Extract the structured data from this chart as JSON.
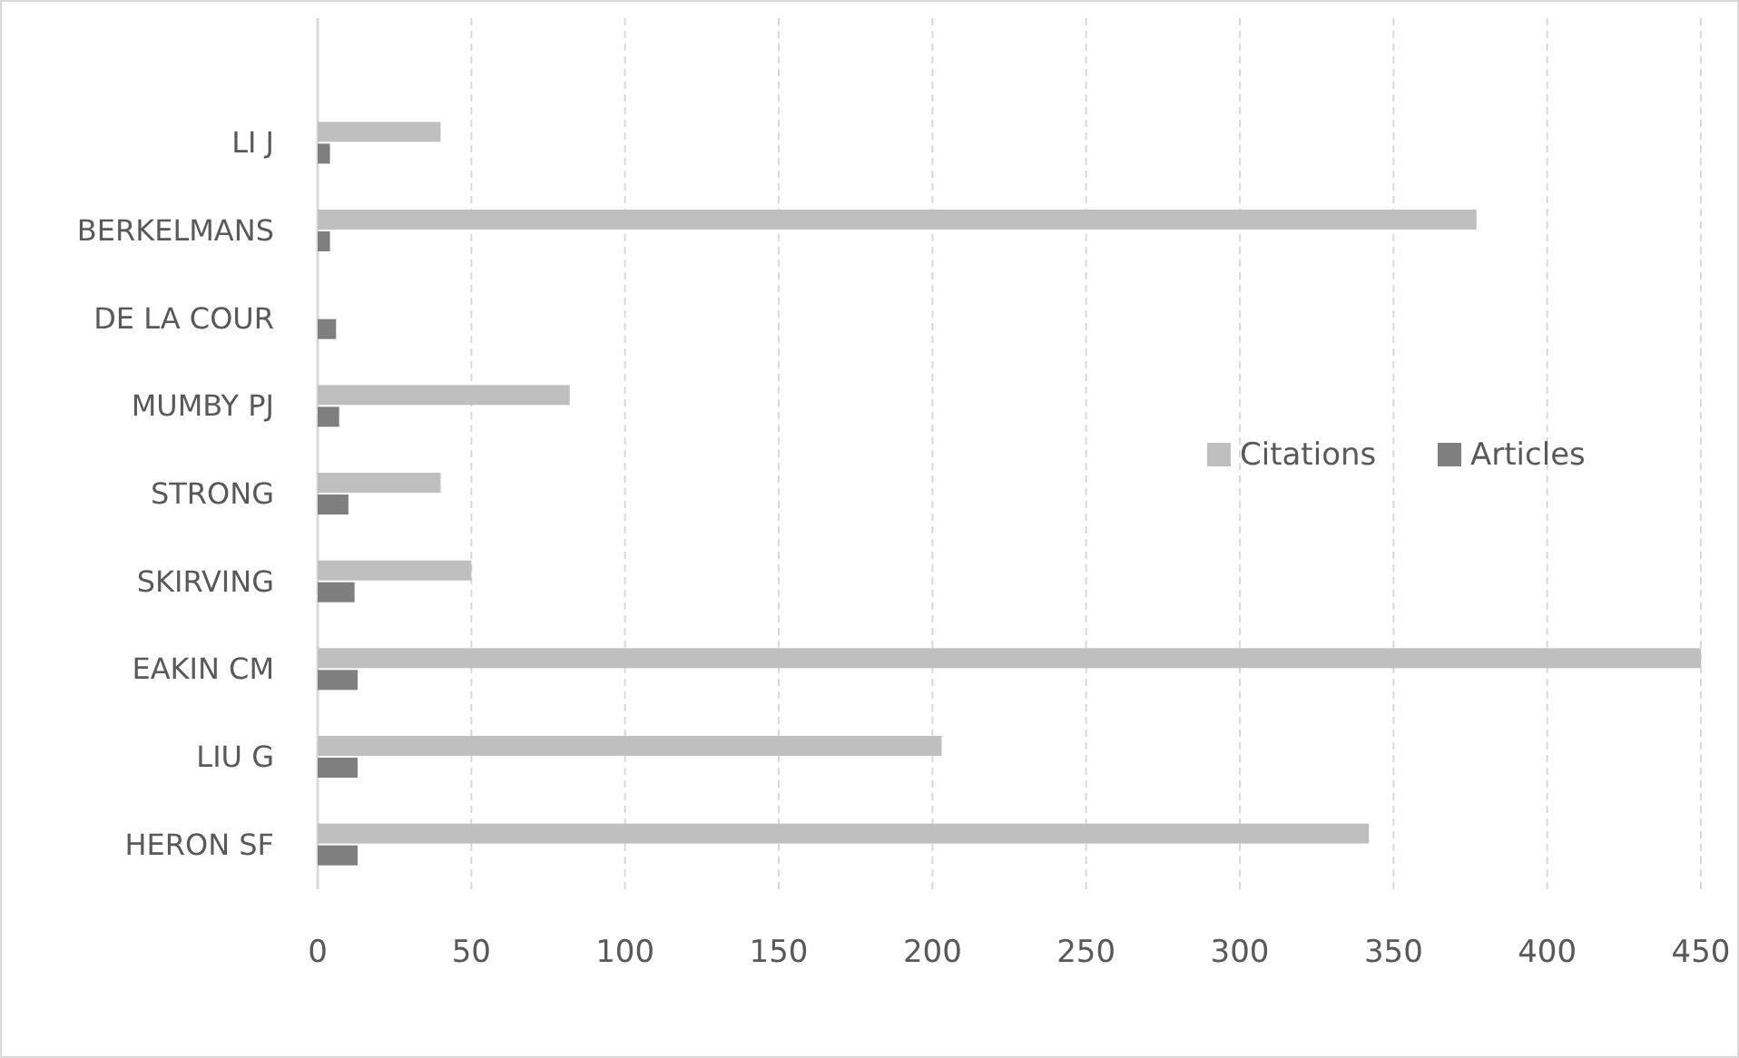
{
  "chart_data": {
    "type": "bar",
    "orientation": "horizontal",
    "categories": [
      "LI J",
      "BERKELMANS",
      "DE LA COUR",
      "MUMBY PJ",
      "STRONG",
      "SKIRVING",
      "EAKIN CM",
      "LIU G",
      "HERON SF"
    ],
    "series": [
      {
        "name": "Citations",
        "color": "#bfbfbf",
        "values": [
          40,
          377,
          0,
          82,
          40,
          50,
          450,
          203,
          342
        ]
      },
      {
        "name": "Articles",
        "color": "#7f7f7f",
        "values": [
          4,
          4,
          6,
          7,
          10,
          12,
          13,
          13,
          13
        ]
      }
    ],
    "xlim": [
      0,
      450
    ],
    "xticks": [
      0,
      50,
      100,
      150,
      200,
      250,
      300,
      350,
      400,
      450
    ],
    "grid": "x",
    "legend": "right"
  }
}
